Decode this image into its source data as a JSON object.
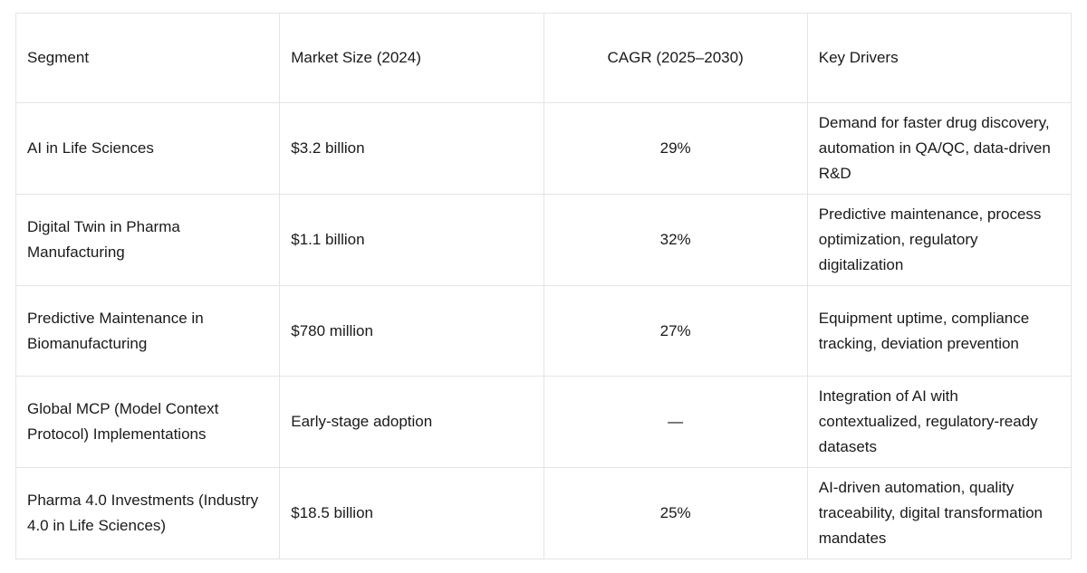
{
  "chart_data": {
    "type": "table",
    "title": "",
    "columns": [
      "Segment",
      "Market Size (2024)",
      "CAGR (2025–2030)",
      "Key Drivers"
    ],
    "rows": [
      [
        "AI in Life Sciences",
        "$3.2 billion",
        "29%",
        "Demand for faster drug discovery, automation in QA/QC, data-driven R&D"
      ],
      [
        "Digital Twin in Pharma Manufacturing",
        "$1.1 billion",
        "32%",
        "Predictive maintenance, process optimization, regulatory digitalization"
      ],
      [
        "Predictive Maintenance in Biomanufacturing",
        "$780 million",
        "27%",
        "Equipment uptime, compliance tracking, deviation prevention"
      ],
      [
        "Global MCP (Model Context Protocol) Implementations",
        "Early-stage adoption",
        "—",
        "Integration of AI with contextualized, regulatory-ready datasets"
      ],
      [
        "Pharma 4.0 Investments (Industry 4.0 in Life Sciences)",
        "$18.5 billion",
        "25%",
        "AI-driven automation, quality traceability, digital transformation mandates"
      ]
    ],
    "layout": {
      "grid": true,
      "cagr_column_align": "center",
      "other_columns_align": "left"
    },
    "colors": {
      "background": "#ffffff",
      "border": "#e4e4e4",
      "text": "#1a1a1a"
    }
  }
}
